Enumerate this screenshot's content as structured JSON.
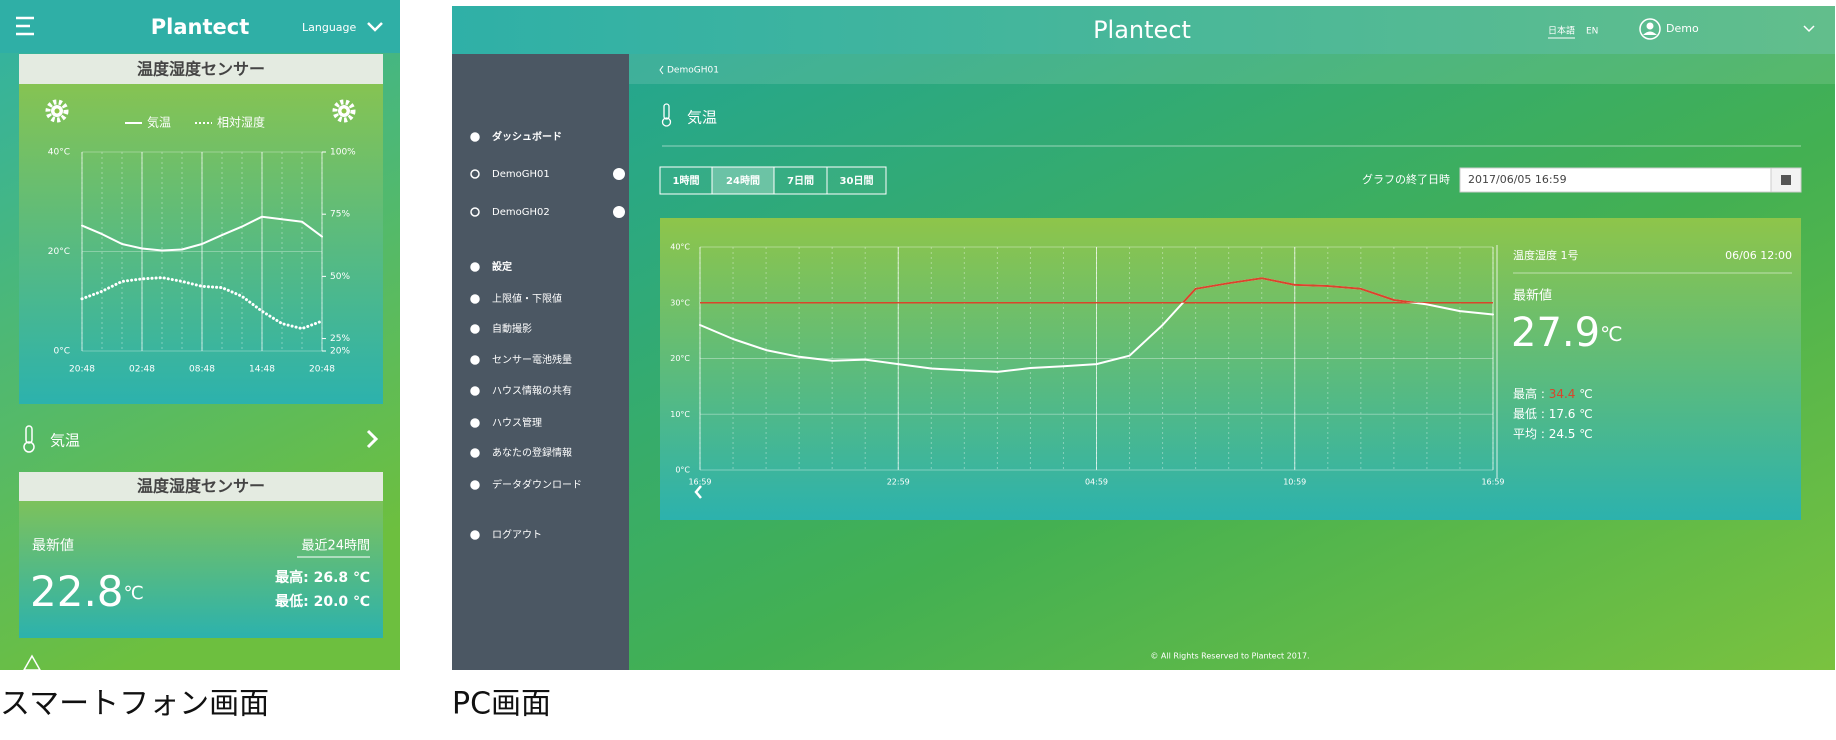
{
  "phone": {
    "header": {
      "title": "Plantect",
      "language": "Language"
    },
    "sensor_card": {
      "title": "温度湿度センサー",
      "chart": {
        "type": "line",
        "x": [
          0,
          2,
          4,
          6,
          8,
          10,
          12,
          14,
          16,
          18,
          20,
          22,
          24
        ],
        "xlim": [
          0,
          24
        ],
        "xticks": [
          {
            "value": 0,
            "label": "20:48"
          },
          {
            "value": 6,
            "label": "02:48"
          },
          {
            "value": 12,
            "label": "08:48"
          },
          {
            "value": 18,
            "label": "14:48"
          },
          {
            "value": 24,
            "label": "20:48"
          }
        ],
        "ylim": [
          0,
          40
        ],
        "yticks": [
          {
            "value": 0,
            "label": "0°C"
          },
          {
            "value": 20,
            "label": "20°C"
          },
          {
            "value": 40,
            "label": "40°C"
          }
        ],
        "y2lim": [
          20,
          100
        ],
        "y2ticks": [
          {
            "value": 20,
            "label": "20%"
          },
          {
            "value": 25,
            "label": "25%"
          },
          {
            "value": 50,
            "label": "50%"
          },
          {
            "value": 75,
            "label": "75%"
          },
          {
            "value": 100,
            "label": "100%"
          }
        ],
        "series": [
          {
            "name": "気温",
            "color": "#ffffff",
            "style": "solid",
            "values": [
              25.2,
              23.5,
              21.5,
              20.6,
              20.2,
              20.4,
              21.5,
              23.3,
              25,
              27,
              26.5,
              26,
              23
            ]
          },
          {
            "name": "相対湿度",
            "color": "#ffffff",
            "style": "dotted",
            "axis": "y2",
            "values": [
              41,
              44,
              48,
              49,
              49.5,
              48,
              46,
              45.5,
              42,
              36,
              31,
              29,
              32
            ]
          }
        ]
      }
    },
    "menu_item": {
      "label": "気温"
    },
    "summary_card": {
      "title": "温度湿度センサー",
      "latest_label": "最新値",
      "period": "最近24時間",
      "latest": 22.8,
      "unit": "℃",
      "max": {
        "label": "最高:",
        "value": 26.8,
        "unit": "℃"
      },
      "min": {
        "label": "最低:",
        "value": 20,
        "value_label": "20.0",
        "unit": "℃"
      }
    }
  },
  "pc": {
    "header": {
      "title": "Plantect",
      "languages": [
        "日本語",
        "EN"
      ],
      "user": "Demo"
    },
    "breadcrumb": "DemoGH01",
    "sidebar": [
      "ダッシュボード",
      "DemoGH01",
      "DemoGH02",
      "設定",
      "上限値・下限値",
      "自動撮影",
      "センサー電池残量",
      "ハウス情報の共有",
      "ハウス管理",
      "あなたの登録情報",
      "データダウンロード",
      "ログアウト"
    ],
    "page_title": "気温",
    "ranges": [
      "1時間",
      "24時間",
      "7日間",
      "30日間"
    ],
    "selected_range": 1,
    "end_time_label": "グラフの終了日時",
    "end_time": "2017/06/05 16:59",
    "chart": {
      "type": "line",
      "x": [
        0,
        1,
        2,
        3,
        4,
        5,
        6,
        7,
        8,
        9,
        10,
        11,
        12,
        13,
        14,
        15,
        16,
        17,
        18,
        19,
        20,
        21,
        22,
        23,
        24
      ],
      "xlim": [
        0,
        24
      ],
      "xticks": [
        {
          "value": 0,
          "label": "16:59"
        },
        {
          "value": 6,
          "label": "22:59"
        },
        {
          "value": 12,
          "label": "04:59"
        },
        {
          "value": 18,
          "label": "10:59"
        },
        {
          "value": 24,
          "label": "16:59"
        }
      ],
      "ylim": [
        0,
        40
      ],
      "yticks": [
        {
          "value": 0,
          "label": "0°C"
        },
        {
          "value": 10,
          "label": "10°C"
        },
        {
          "value": 20,
          "label": "20°C"
        },
        {
          "value": 30,
          "label": "30°C"
        },
        {
          "value": 40,
          "label": "40°C"
        }
      ],
      "threshold": 30,
      "threshold_color": "#d9452b",
      "series": [
        {
          "name": "温度湿度 1号",
          "color": "#ffffff",
          "above_threshold_color": "#d9452b",
          "style": "solid",
          "values": [
            26,
            23.5,
            21.5,
            20.3,
            19.6,
            19.8,
            19,
            18.2,
            17.9,
            17.6,
            18.3,
            18.6,
            19,
            20.5,
            26,
            32.5,
            33.5,
            34.4,
            33.2,
            33,
            32.5,
            30.5,
            29.7,
            28.5,
            27.9
          ]
        }
      ]
    },
    "info": {
      "timestamp": "06/06 12:00",
      "latest_label": "最新値",
      "latest": 27.9,
      "unit": "℃",
      "stats": [
        {
          "label": "最高 :",
          "value": 34.4,
          "unit": "℃",
          "color": "#d9452b"
        },
        {
          "label": "最低 :",
          "value": 17.6,
          "unit": "℃"
        },
        {
          "label": "平均 :",
          "value": 24.5,
          "unit": "℃"
        }
      ]
    },
    "footer": "© All Rights Reserved to Plantect 2017."
  },
  "captions": [
    "スマートフォン画面",
    "PC画面"
  ]
}
